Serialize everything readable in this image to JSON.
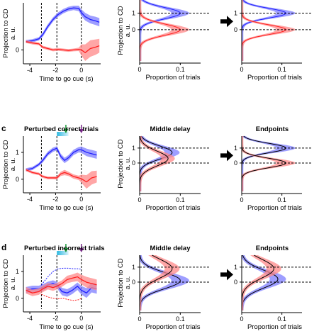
{
  "colors": {
    "blue": "#1f1fff",
    "blue_band": "#7d7dff",
    "red": "#ff1f1f",
    "red_band": "#ff8888",
    "green": "#1a9a3a",
    "purple": "#7a2a8a",
    "cyan_bar": "#2ab8e0",
    "black": "#000000"
  },
  "panels": [
    {
      "row": 0,
      "letter": "",
      "title": "",
      "ylabel": "Projection to CD\na. u.",
      "xlabel": "Time to go cue (s)",
      "x_ticks": [
        "-4",
        "-2",
        "0"
      ],
      "y_ticks": [
        "0"
      ],
      "col2_title": "",
      "col3_title": "",
      "hist_xlabel": "Proportion of trials",
      "hist_x_ticks": [
        "0",
        "0.1"
      ],
      "hist_y_ticks": [
        "1",
        "0"
      ]
    },
    {
      "row": 1,
      "letter": "c",
      "title": "Perturbed correct trials",
      "ylabel": "Projection to CD\na. u.",
      "xlabel": "Time to go cue (s)",
      "x_ticks": [
        "-4",
        "-2",
        "0"
      ],
      "y_ticks": [
        "1",
        "0"
      ],
      "col2_title": "Middle delay",
      "col3_title": "Endpoints",
      "hist_xlabel": "Proportion of trials",
      "hist_x_ticks": [
        "0",
        "0.1"
      ],
      "hist_y_ticks": [
        "1",
        "0"
      ]
    },
    {
      "row": 2,
      "letter": "d",
      "title": "Perturbed incorrect trials",
      "ylabel": "Projection to CD\na. u.",
      "xlabel": "Time to go cue (s)",
      "x_ticks": [
        "-4",
        "-2",
        "0"
      ],
      "y_ticks": [
        "1",
        "0"
      ],
      "col2_title": "Middle delay",
      "col3_title": "Endpoints",
      "hist_xlabel": "Proportion of trials",
      "hist_x_ticks": [
        "0",
        "0.1"
      ],
      "hist_y_ticks": [
        "1",
        "0"
      ]
    }
  ],
  "chart_data": [
    {
      "type": "line",
      "panel": "top-left",
      "xlabel": "Time to go cue (s)",
      "ylabel": "Projection to CD a. u.",
      "xlim": [
        -4.5,
        1.5
      ],
      "ylim": [
        -0.4,
        1.6
      ],
      "vlines": [
        -3.1,
        -1.9,
        0
      ],
      "series": [
        {
          "color": "blue",
          "x": [
            -4.3,
            -3.8,
            -3.3,
            -3.0,
            -2.6,
            -2.2,
            -1.8,
            -1.4,
            -1.0,
            -0.6,
            -0.2,
            0.0,
            0.3,
            0.7,
            1.1,
            1.4
          ],
          "y": [
            0.3,
            0.33,
            0.4,
            0.55,
            0.85,
            1.1,
            1.28,
            1.4,
            1.48,
            1.52,
            1.5,
            1.35,
            1.2,
            1.1,
            1.05,
            1.0
          ],
          "err": [
            0.06,
            0.06,
            0.06,
            0.08,
            0.08,
            0.08,
            0.08,
            0.08,
            0.08,
            0.08,
            0.1,
            0.12,
            0.14,
            0.14,
            0.15,
            0.15
          ]
        },
        {
          "color": "red",
          "x": [
            -4.3,
            -3.8,
            -3.3,
            -3.0,
            -2.6,
            -2.2,
            -1.8,
            -1.4,
            -1.0,
            -0.6,
            -0.2,
            0.0,
            0.3,
            0.7,
            1.1,
            1.4
          ],
          "y": [
            0.3,
            0.25,
            0.22,
            0.1,
            0.05,
            0.0,
            0.02,
            0.0,
            -0.02,
            0.0,
            0.02,
            0.0,
            -0.1,
            0.05,
            0.1,
            0.15
          ],
          "err": [
            0.05,
            0.05,
            0.05,
            0.05,
            0.05,
            0.05,
            0.05,
            0.05,
            0.05,
            0.05,
            0.06,
            0.2,
            0.3,
            0.3,
            0.28,
            0.25
          ]
        }
      ]
    },
    {
      "type": "line",
      "panel": "middle-left",
      "xlabel": "Time to go cue (s)",
      "ylabel": "Projection to CD a. u.",
      "xlim": [
        -4.5,
        1.5
      ],
      "ylim": [
        -0.4,
        1.5
      ],
      "vlines": [
        -3.1,
        -1.9,
        0
      ],
      "stim_bar": {
        "x": [
          -1.9,
          -1.0
        ]
      },
      "arrows": [
        {
          "x": -1.2,
          "color": "green"
        },
        {
          "x": 0.0,
          "color": "purple"
        }
      ],
      "series": [
        {
          "color": "blue",
          "x": [
            -4.3,
            -3.8,
            -3.3,
            -3.0,
            -2.6,
            -2.2,
            -1.9,
            -1.6,
            -1.3,
            -1.0,
            -0.6,
            -0.2,
            0.0,
            0.4,
            0.8,
            1.2
          ],
          "y": [
            0.35,
            0.4,
            0.55,
            0.7,
            0.95,
            1.1,
            1.15,
            0.85,
            0.7,
            0.8,
            1.0,
            1.1,
            1.1,
            1.0,
            0.95,
            0.9
          ],
          "err": [
            0.06,
            0.06,
            0.06,
            0.08,
            0.08,
            0.08,
            0.08,
            0.1,
            0.1,
            0.1,
            0.1,
            0.1,
            0.12,
            0.14,
            0.14,
            0.14
          ]
        },
        {
          "color": "red",
          "x": [
            -4.3,
            -3.8,
            -3.3,
            -3.0,
            -2.6,
            -2.2,
            -1.9,
            -1.6,
            -1.3,
            -1.0,
            -0.6,
            -0.2,
            0.0,
            0.4,
            0.8,
            1.2
          ],
          "y": [
            0.35,
            0.25,
            0.2,
            0.1,
            0.05,
            0.05,
            0.05,
            0.2,
            0.25,
            0.2,
            0.1,
            0.05,
            0.02,
            -0.1,
            0.05,
            0.1
          ],
          "err": [
            0.05,
            0.05,
            0.05,
            0.05,
            0.05,
            0.05,
            0.06,
            0.08,
            0.1,
            0.08,
            0.08,
            0.08,
            0.15,
            0.25,
            0.25,
            0.22
          ]
        }
      ]
    },
    {
      "type": "line",
      "panel": "bottom-left",
      "xlabel": "Time to go cue (s)",
      "ylabel": "Projection to CD a. u.",
      "xlim": [
        -4.5,
        1.5
      ],
      "ylim": [
        -0.4,
        1.5
      ],
      "vlines": [
        -3.1,
        -1.9,
        0
      ],
      "stim_bar": {
        "x": [
          -1.9,
          -1.0
        ]
      },
      "arrows": [
        {
          "x": -1.2,
          "color": "green"
        },
        {
          "x": 0.0,
          "color": "purple"
        }
      ],
      "series": [
        {
          "color": "blue",
          "x": [
            -4.3,
            -3.8,
            -3.3,
            -3.0,
            -2.6,
            -2.2,
            -1.9,
            -1.5,
            -1.1,
            -0.7,
            -0.3,
            0.0,
            0.4,
            0.8,
            1.2
          ],
          "y": [
            0.3,
            0.35,
            0.35,
            0.4,
            0.5,
            0.55,
            0.5,
            0.25,
            0.2,
            0.3,
            0.45,
            0.3,
            0.2,
            0.4,
            0.35
          ],
          "err": [
            0.12,
            0.12,
            0.12,
            0.12,
            0.12,
            0.12,
            0.12,
            0.14,
            0.14,
            0.14,
            0.14,
            0.16,
            0.18,
            0.18,
            0.18
          ]
        },
        {
          "color": "red",
          "x": [
            -4.3,
            -3.8,
            -3.3,
            -3.0,
            -2.6,
            -2.2,
            -1.9,
            -1.5,
            -1.1,
            -0.7,
            -0.3,
            0.0,
            0.4,
            0.8,
            1.2
          ],
          "y": [
            0.3,
            0.2,
            0.25,
            0.35,
            0.45,
            0.4,
            0.45,
            0.55,
            0.7,
            0.75,
            0.8,
            0.7,
            0.6,
            0.55,
            0.5
          ],
          "err": [
            0.12,
            0.12,
            0.12,
            0.12,
            0.12,
            0.12,
            0.12,
            0.12,
            0.14,
            0.14,
            0.16,
            0.18,
            0.2,
            0.2,
            0.2
          ]
        },
        {
          "color": "blue",
          "dashed": true,
          "x": [
            -3.1,
            -2.6,
            -2.2,
            -1.8,
            -1.4,
            -1.0,
            -0.6,
            -0.2,
            0.0
          ],
          "y": [
            0.5,
            0.8,
            1.0,
            1.1,
            1.12,
            1.12,
            1.1,
            1.1,
            1.08
          ]
        },
        {
          "color": "red",
          "dashed": true,
          "x": [
            -3.1,
            -2.6,
            -2.2,
            -1.8,
            -1.4,
            -1.0,
            -0.6,
            -0.2,
            0.0
          ],
          "y": [
            0.15,
            0.05,
            0.0,
            -0.02,
            0.0,
            -0.05,
            -0.08,
            -0.05,
            0.0
          ]
        }
      ]
    },
    {
      "type": "histogram",
      "note": "horizontal distributions; y = projection, x = proportion of trials",
      "xlabel": "Proportion of trials",
      "ylabel": "Projection to CD a. u.",
      "xlim": [
        0,
        0.15
      ],
      "ylim": [
        -1.9,
        1.8
      ],
      "hlines": [
        1,
        0
      ],
      "panels": [
        {
          "id": "r0c2",
          "series": [
            {
              "color": "blue",
              "peak_y": 1.0,
              "peak_x": 0.1,
              "width": 0.35
            },
            {
              "color": "red",
              "peak_y": 0.0,
              "peak_x": 0.1,
              "width": 0.35
            }
          ]
        },
        {
          "id": "r0c3",
          "series": [
            {
              "color": "blue",
              "peak_y": 1.0,
              "peak_x": 0.11,
              "width": 0.3
            },
            {
              "color": "red",
              "peak_y": 0.0,
              "peak_x": 0.11,
              "width": 0.3
            }
          ]
        },
        {
          "id": "r1c2",
          "series": [
            {
              "color": "blue",
              "peak_y": 0.7,
              "peak_x": 0.08,
              "width": 0.45
            },
            {
              "color": "red",
              "peak_y": 0.3,
              "peak_x": 0.07,
              "width": 0.5
            }
          ]
        },
        {
          "id": "r1c3",
          "series": [
            {
              "color": "blue",
              "peak_y": 1.0,
              "peak_x": 0.11,
              "width": 0.32
            },
            {
              "color": "red",
              "peak_y": 0.0,
              "peak_x": 0.11,
              "width": 0.32
            }
          ]
        },
        {
          "id": "r2c2",
          "series": [
            {
              "color": "blue",
              "peak_y": 0.1,
              "peak_x": 0.1,
              "width": 0.55
            },
            {
              "color": "red",
              "peak_y": 0.9,
              "peak_x": 0.08,
              "width": 0.65
            }
          ]
        },
        {
          "id": "r2c3",
          "series": [
            {
              "color": "blue",
              "peak_y": 0.2,
              "peak_x": 0.09,
              "width": 0.6
            },
            {
              "color": "red",
              "peak_y": 0.9,
              "peak_x": 0.08,
              "width": 0.65
            }
          ]
        }
      ]
    }
  ]
}
